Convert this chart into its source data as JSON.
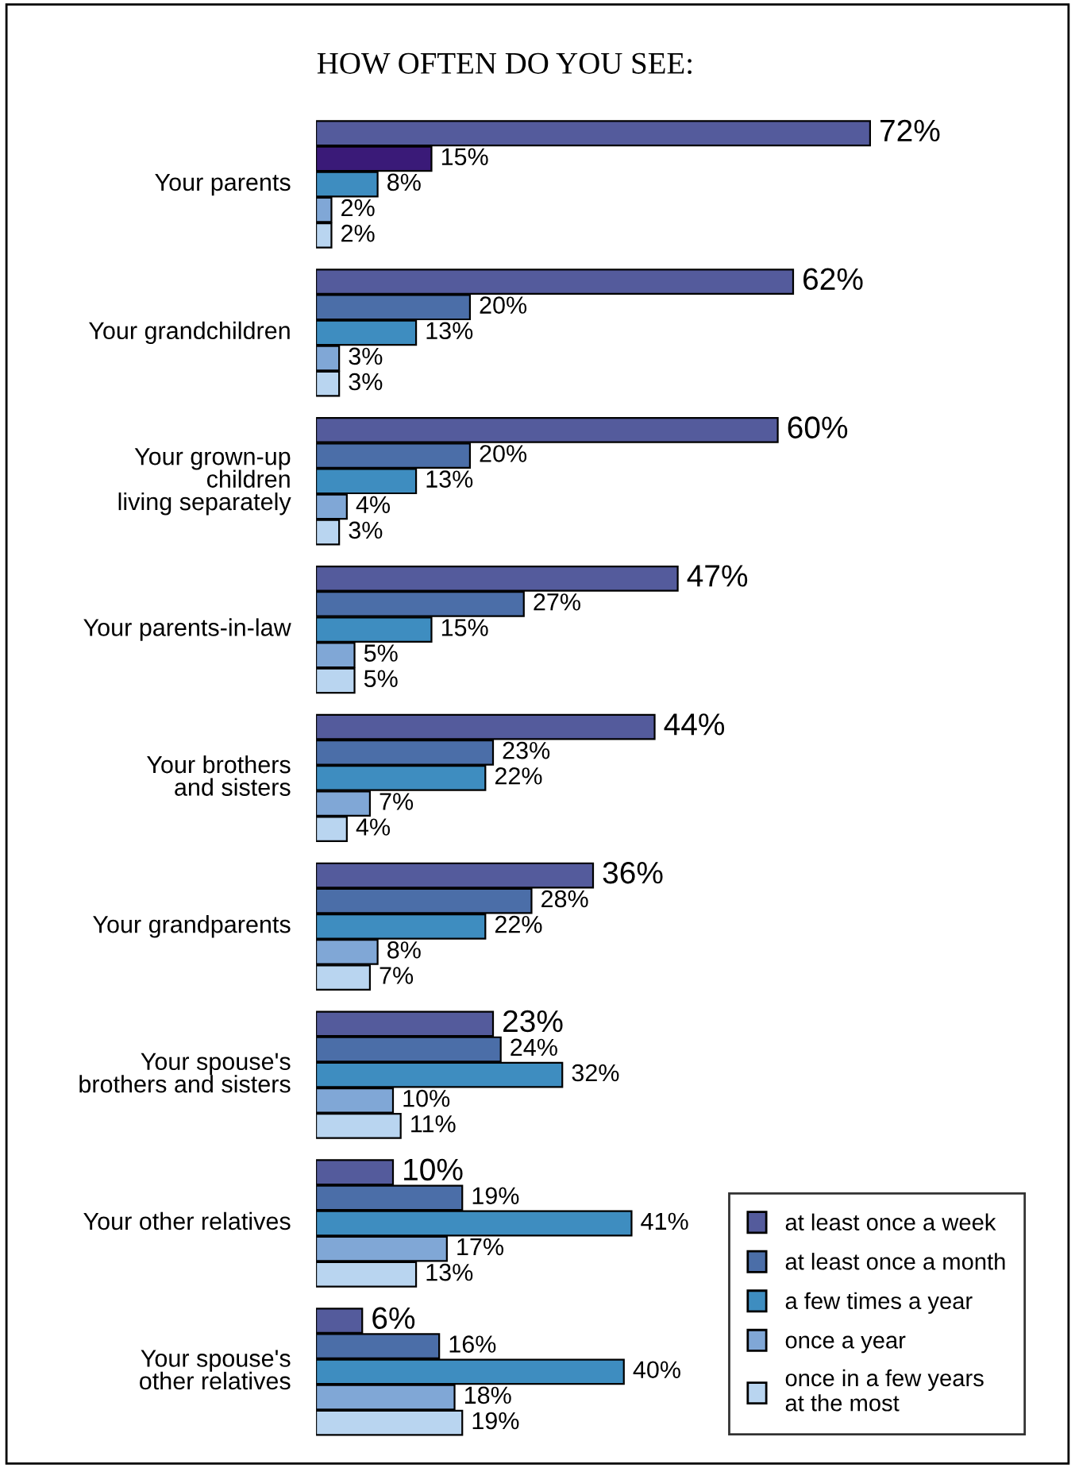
{
  "chart_data": {
    "type": "bar",
    "orientation": "horizontal",
    "title": "HOW OFTEN DO YOU SEE:",
    "categories": [
      "Your parents",
      "Your grandchildren",
      "Your grown-up\nchildren\nliving separately",
      "Your parents-in-law",
      "Your brothers\nand sisters",
      "Your grandparents",
      "Your spouse's\nbrothers and sisters",
      "Your other relatives",
      "Your spouse's\nother relatives"
    ],
    "series": [
      {
        "name": "at least once a week",
        "color": "#545b9c",
        "values": [
          72,
          62,
          60,
          47,
          44,
          36,
          23,
          10,
          6
        ],
        "value_labels": [
          "72%",
          "62%",
          "60%",
          "47%",
          "44%",
          "36%",
          "23%",
          "10%",
          "6%"
        ]
      },
      {
        "name": "at least once a month",
        "color": "#4b6ea8",
        "colors": [
          "#3a1a78",
          "#4b6ea8",
          "#4b6ea8",
          "#4b6ea8",
          "#4b6ea8",
          "#4b6ea8",
          "#4b6ea8",
          "#4b6ea8",
          "#4b6ea8"
        ],
        "values": [
          15,
          20,
          20,
          27,
          23,
          28,
          24,
          19,
          16
        ],
        "value_labels": [
          "15%",
          "20%",
          "20%",
          "27%",
          "23%",
          "28%",
          "24%",
          "19%",
          "16%"
        ]
      },
      {
        "name": "a few times a year",
        "color": "#3e8dc0",
        "values": [
          8,
          13,
          13,
          15,
          22,
          22,
          32,
          41,
          40
        ],
        "value_labels": [
          "8%",
          "13%",
          "13%",
          "15%",
          "22%",
          "22%",
          "32%",
          "41%",
          "40%"
        ]
      },
      {
        "name": "once a year",
        "color": "#80a7d6",
        "values": [
          2,
          3,
          4,
          5,
          7,
          8,
          10,
          17,
          18
        ],
        "value_labels": [
          "2%",
          "3%",
          "4%",
          "5%",
          "7%",
          "8%",
          "10%",
          "17%",
          "18%"
        ]
      },
      {
        "name": "once in a few years\nat the most",
        "color": "#b9d5f0",
        "values": [
          2,
          3,
          3,
          5,
          4,
          7,
          11,
          13,
          19
        ],
        "value_labels": [
          "2%",
          "3%",
          "3%",
          "5%",
          "4%",
          "7%",
          "11%",
          "13%",
          "19%"
        ]
      }
    ],
    "legend": "bottom right"
  }
}
